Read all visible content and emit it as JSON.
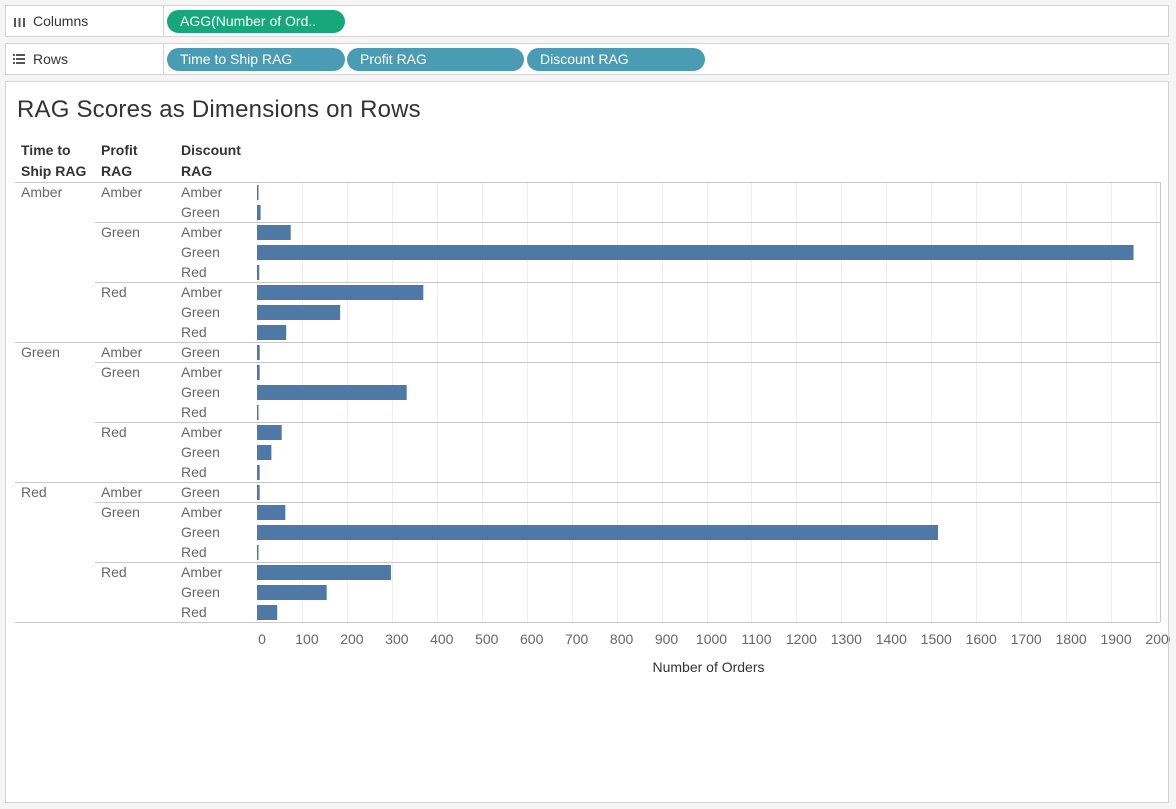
{
  "shelves": {
    "columns": {
      "label": "Columns",
      "icon": "columns-icon",
      "pill": "AGG(Number of Ord.."
    },
    "rows": {
      "label": "Rows",
      "icon": "rows-icon",
      "pills": [
        "Time to Ship RAG",
        "Profit RAG",
        "Discount RAG"
      ]
    }
  },
  "colors": {
    "bar": "#4e79a7",
    "pill_measure": "#16a87a",
    "pill_dimension": "#4a9bb4"
  },
  "chart_data": {
    "type": "bar",
    "orientation": "horizontal",
    "title": "RAG Scores as Dimensions on Rows",
    "row_headers": [
      "Time to Ship RAG",
      "Profit RAG",
      "Discount RAG"
    ],
    "xlabel": "Number of Orders",
    "xlim": [
      0,
      2000
    ],
    "xticks": [
      0,
      100,
      200,
      300,
      400,
      500,
      600,
      700,
      800,
      900,
      1000,
      1100,
      1200,
      1300,
      1400,
      1500,
      1600,
      1700,
      1800,
      1900,
      2000
    ],
    "rows": [
      {
        "time_to_ship": "Amber",
        "profit": "Amber",
        "discount": "Amber",
        "value": 3
      },
      {
        "time_to_ship": "Amber",
        "profit": "Amber",
        "discount": "Green",
        "value": 8
      },
      {
        "time_to_ship": "Amber",
        "profit": "Green",
        "discount": "Amber",
        "value": 75
      },
      {
        "time_to_ship": "Amber",
        "profit": "Green",
        "discount": "Green",
        "value": 1950
      },
      {
        "time_to_ship": "Amber",
        "profit": "Green",
        "discount": "Red",
        "value": 5
      },
      {
        "time_to_ship": "Amber",
        "profit": "Red",
        "discount": "Amber",
        "value": 370
      },
      {
        "time_to_ship": "Amber",
        "profit": "Red",
        "discount": "Green",
        "value": 185
      },
      {
        "time_to_ship": "Amber",
        "profit": "Red",
        "discount": "Red",
        "value": 65
      },
      {
        "time_to_ship": "Green",
        "profit": "Amber",
        "discount": "Green",
        "value": 6
      },
      {
        "time_to_ship": "Green",
        "profit": "Green",
        "discount": "Amber",
        "value": 6
      },
      {
        "time_to_ship": "Green",
        "profit": "Green",
        "discount": "Green",
        "value": 333
      },
      {
        "time_to_ship": "Green",
        "profit": "Green",
        "discount": "Red",
        "value": 1
      },
      {
        "time_to_ship": "Green",
        "profit": "Red",
        "discount": "Amber",
        "value": 55
      },
      {
        "time_to_ship": "Green",
        "profit": "Red",
        "discount": "Green",
        "value": 32
      },
      {
        "time_to_ship": "Green",
        "profit": "Red",
        "discount": "Red",
        "value": 6
      },
      {
        "time_to_ship": "Red",
        "profit": "Amber",
        "discount": "Green",
        "value": 6
      },
      {
        "time_to_ship": "Red",
        "profit": "Green",
        "discount": "Amber",
        "value": 63
      },
      {
        "time_to_ship": "Red",
        "profit": "Green",
        "discount": "Green",
        "value": 1515
      },
      {
        "time_to_ship": "Red",
        "profit": "Green",
        "discount": "Red",
        "value": 1
      },
      {
        "time_to_ship": "Red",
        "profit": "Red",
        "discount": "Amber",
        "value": 298
      },
      {
        "time_to_ship": "Red",
        "profit": "Red",
        "discount": "Green",
        "value": 155
      },
      {
        "time_to_ship": "Red",
        "profit": "Red",
        "discount": "Red",
        "value": 45
      }
    ]
  }
}
